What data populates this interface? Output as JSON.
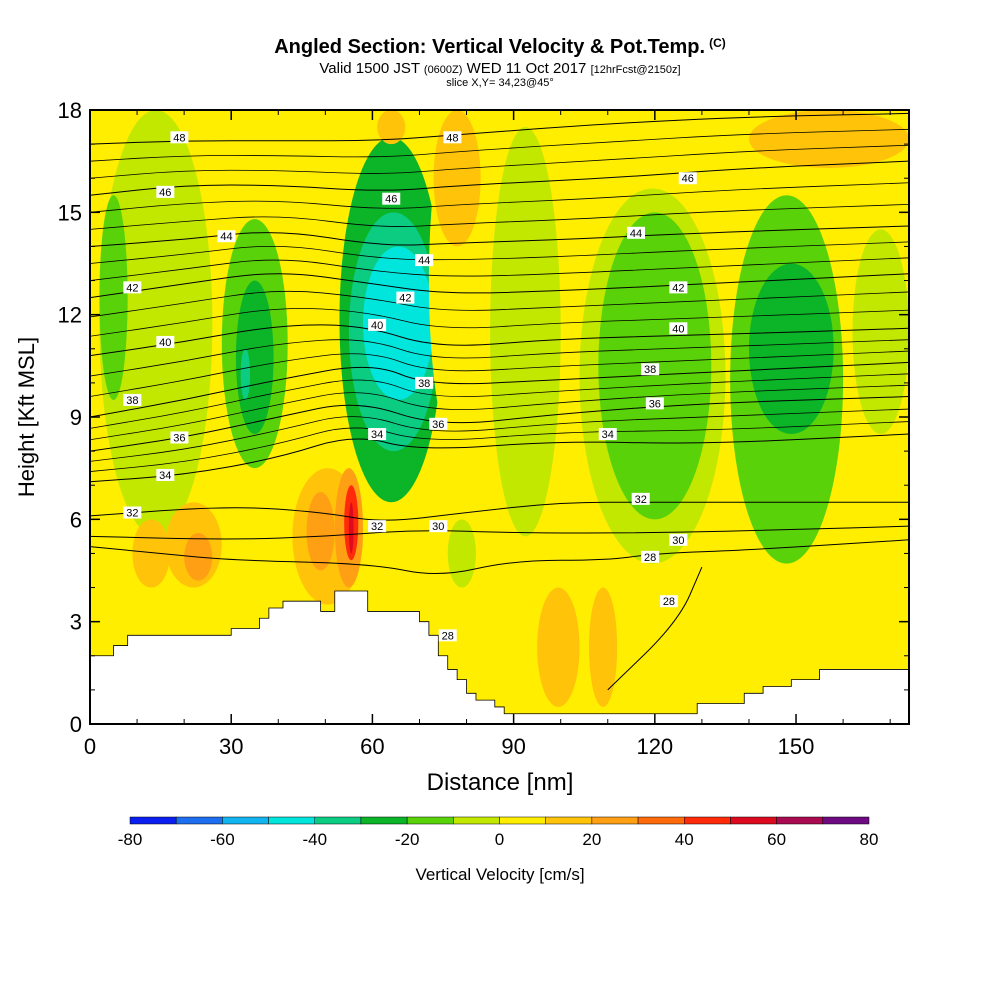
{
  "title": {
    "main": "Angled Section: Vertical Velocity & Pot.Temp.",
    "unit": "(C)",
    "valid_prefix": "Valid 1500 JST",
    "valid_utc": "(0600Z)",
    "valid_date": "WED 11 Oct 2017",
    "forecast": "[12hrFcst@2150z]",
    "slice": "slice X,Y= 34,23@45°"
  },
  "chart_data": {
    "type": "heatmap",
    "xlabel": "Distance [nm]",
    "ylabel": "Height [Kft MSL]",
    "xlim": [
      0,
      174
    ],
    "ylim": [
      0,
      18
    ],
    "xticks": [
      0,
      30,
      60,
      90,
      120,
      150
    ],
    "yticks": [
      0,
      3,
      6,
      9,
      12,
      15,
      18
    ],
    "colorbar": {
      "label": "Vertical Velocity [cm/s]",
      "ticks": [
        -80,
        -60,
        -40,
        -20,
        0,
        20,
        40,
        60,
        80
      ],
      "levels": [
        -80,
        -70,
        -60,
        -50,
        -40,
        -30,
        -20,
        -10,
        0,
        10,
        20,
        30,
        40,
        50,
        60,
        70,
        80
      ],
      "colors": [
        "#0a1ef0",
        "#1e6ef0",
        "#12b4f0",
        "#00e6dc",
        "#0ccc82",
        "#0cb428",
        "#5ad20a",
        "#c2e800",
        "#ffee00",
        "#ffc40a",
        "#ffa014",
        "#ff6a0a",
        "#ff2a0a",
        "#dc0a1e",
        "#aa0a50",
        "#6e0a82"
      ]
    },
    "vertical_velocity_cells": [
      {
        "x": [
          0,
          20
        ],
        "y": [
          1,
          5.3
        ],
        "value": 5
      },
      {
        "x": [
          2,
          26
        ],
        "y": [
          5.5,
          18
        ],
        "value": -5
      },
      {
        "x": [
          2,
          8
        ],
        "y": [
          9.5,
          15.5
        ],
        "value": -15
      },
      {
        "x": [
          9,
          17
        ],
        "y": [
          4,
          6
        ],
        "value": 15
      },
      {
        "x": [
          16,
          28
        ],
        "y": [
          4,
          6.5
        ],
        "value": 15
      },
      {
        "x": [
          20,
          26
        ],
        "y": [
          4.2,
          5.6
        ],
        "value": 25
      },
      {
        "x": [
          28,
          42
        ],
        "y": [
          7.5,
          14.8
        ],
        "value": -15
      },
      {
        "x": [
          31,
          39
        ],
        "y": [
          8.5,
          13
        ],
        "value": -25
      },
      {
        "x": [
          32,
          34
        ],
        "y": [
          9.5,
          11
        ],
        "value": -35
      },
      {
        "x": [
          28,
          45
        ],
        "y": [
          15,
          18
        ],
        "value": 5
      },
      {
        "x": [
          43,
          58
        ],
        "y": [
          3.5,
          7.5
        ],
        "value": 15
      },
      {
        "x": [
          46,
          52
        ],
        "y": [
          4.5,
          6.8
        ],
        "value": 25
      },
      {
        "x": [
          52,
          58
        ],
        "y": [
          4,
          7.5
        ],
        "value": 25
      },
      {
        "x": [
          54,
          57
        ],
        "y": [
          4.8,
          7
        ],
        "value": 45
      },
      {
        "x": [
          55,
          56
        ],
        "y": [
          5,
          6.5
        ],
        "value": 55
      },
      {
        "x": [
          53,
          75
        ],
        "y": [
          6.5,
          17.2
        ],
        "value": -25
      },
      {
        "x": [
          55,
          74
        ],
        "y": [
          8,
          15
        ],
        "value": -35
      },
      {
        "x": [
          58,
          73
        ],
        "y": [
          9.5,
          14
        ],
        "value": -45
      },
      {
        "x": [
          72,
          84
        ],
        "y": [
          8,
          18
        ],
        "value": 5
      },
      {
        "x": [
          73,
          83
        ],
        "y": [
          14,
          18
        ],
        "value": 15
      },
      {
        "x": [
          61,
          67
        ],
        "y": [
          17,
          18
        ],
        "value": 15
      },
      {
        "x": [
          76,
          82
        ],
        "y": [
          4,
          6
        ],
        "value": -5
      },
      {
        "x": [
          85,
          100
        ],
        "y": [
          5.5,
          17.5
        ],
        "value": -5
      },
      {
        "x": [
          104,
          135
        ],
        "y": [
          4.7,
          15.7
        ],
        "value": -5
      },
      {
        "x": [
          108,
          132
        ],
        "y": [
          6,
          15
        ],
        "value": -15
      },
      {
        "x": [
          136,
          160
        ],
        "y": [
          4.7,
          15.5
        ],
        "value": -15
      },
      {
        "x": [
          140,
          158
        ],
        "y": [
          8.5,
          13.5
        ],
        "value": -25
      },
      {
        "x": [
          162,
          174
        ],
        "y": [
          8.5,
          14.5
        ],
        "value": -5
      },
      {
        "x": [
          140,
          174
        ],
        "y": [
          16.3,
          18
        ],
        "value": 15
      },
      {
        "x": [
          95,
          104
        ],
        "y": [
          0.5,
          4
        ],
        "value": 15
      },
      {
        "x": [
          106,
          112
        ],
        "y": [
          0.5,
          4
        ],
        "value": 15
      },
      {
        "x": [
          120,
          128
        ],
        "y": [
          1,
          4
        ],
        "value": 5
      },
      {
        "x": [
          130,
          160
        ],
        "y": [
          1,
          4
        ],
        "value": 5
      }
    ],
    "terrain_height": [
      [
        0,
        2
      ],
      [
        5,
        2.3
      ],
      [
        8,
        2.6
      ],
      [
        28,
        2.6
      ],
      [
        30,
        2.8
      ],
      [
        36,
        3.1
      ],
      [
        38,
        3.4
      ],
      [
        41,
        3.6
      ],
      [
        48,
        3.6
      ],
      [
        49,
        3.3
      ],
      [
        52,
        3.3
      ],
      [
        52,
        3.9
      ],
      [
        57,
        3.9
      ],
      [
        59,
        3.3
      ],
      [
        69,
        3.3
      ],
      [
        70,
        3
      ],
      [
        72,
        2.6
      ],
      [
        74,
        2
      ],
      [
        76,
        1.6
      ],
      [
        78,
        1.3
      ],
      [
        80,
        0.9
      ],
      [
        82,
        0.7
      ],
      [
        86,
        0.5
      ],
      [
        88,
        0.3
      ],
      [
        91,
        0.3
      ],
      [
        91,
        0.3
      ],
      [
        129,
        0.3
      ],
      [
        129,
        0.6
      ],
      [
        135,
        0.6
      ],
      [
        139,
        0.9
      ],
      [
        143,
        1.1
      ],
      [
        149,
        1.3
      ],
      [
        152,
        1.3
      ],
      [
        155,
        1.6
      ],
      [
        174,
        1.6
      ]
    ],
    "potential_temperature": [
      {
        "label": "28",
        "points": [
          [
            0,
            5.2
          ],
          [
            15,
            5.0
          ],
          [
            30,
            4.8
          ],
          [
            60,
            4.7
          ],
          [
            74,
            4.3
          ],
          [
            90,
            4.8
          ],
          [
            110,
            4.8
          ],
          [
            120,
            5.0
          ],
          [
            140,
            5.1
          ],
          [
            174,
            5.4
          ]
        ],
        "label_at": [
          75,
          2.6
        ]
      },
      {
        "label": "28",
        "points": [
          [
            110,
            1.0
          ],
          [
            125,
            3.0
          ],
          [
            130,
            4.6
          ]
        ],
        "label_at": [
          123,
          3.7
        ]
      },
      {
        "label": "30",
        "points": [
          [
            0,
            5.5
          ],
          [
            30,
            5.4
          ],
          [
            50,
            5.5
          ],
          [
            70,
            5.7
          ],
          [
            90,
            5.6
          ],
          [
            120,
            5.6
          ],
          [
            150,
            5.7
          ],
          [
            174,
            5.8
          ]
        ],
        "label_at": [
          75,
          5.8
        ]
      },
      {
        "label": "32",
        "points": [
          [
            0,
            6.1
          ],
          [
            30,
            6.4
          ],
          [
            50,
            6.2
          ],
          [
            62,
            5.9
          ],
          [
            80,
            6.2
          ],
          [
            100,
            6.5
          ],
          [
            120,
            6.5
          ],
          [
            150,
            6.5
          ],
          [
            174,
            6.5
          ]
        ],
        "label_at": [
          58,
          6.0
        ]
      },
      {
        "label": "34",
        "points": [
          [
            0,
            7.1
          ],
          [
            20,
            7.3
          ],
          [
            40,
            7.8
          ],
          [
            56,
            8.5
          ],
          [
            70,
            8.0
          ],
          [
            100,
            8.3
          ],
          [
            130,
            8.2
          ],
          [
            174,
            8.5
          ]
        ],
        "label_at": [
          55,
          8.4
        ]
      },
      {
        "label": "36",
        "points": [
          [
            0,
            8.0
          ],
          [
            20,
            8.4
          ],
          [
            40,
            9.0
          ],
          [
            57,
            9.5
          ],
          [
            74,
            8.7
          ],
          [
            100,
            9.1
          ],
          [
            130,
            9.4
          ],
          [
            174,
            9.6
          ]
        ],
        "label_at": [
          74,
          8.8
        ]
      },
      {
        "label": "38",
        "points": [
          [
            0,
            9.0
          ],
          [
            20,
            9.5
          ],
          [
            40,
            10.1
          ],
          [
            60,
            10.6
          ],
          [
            72,
            9.9
          ],
          [
            100,
            10.1
          ],
          [
            130,
            10.3
          ],
          [
            174,
            10.6
          ]
        ],
        "label_at": [
          72,
          9.9
        ]
      },
      {
        "label": "40",
        "points": [
          [
            0,
            10.8
          ],
          [
            20,
            11.2
          ],
          [
            40,
            11.7
          ],
          [
            58,
            11.7
          ],
          [
            74,
            11.0
          ],
          [
            100,
            11.3
          ],
          [
            130,
            11.4
          ],
          [
            174,
            11.6
          ]
        ],
        "label_at": [
          58,
          11.7
        ]
      },
      {
        "label": "42",
        "points": [
          [
            0,
            12.5
          ],
          [
            20,
            12.9
          ],
          [
            40,
            13.3
          ],
          [
            60,
            12.9
          ],
          [
            76,
            12.6
          ],
          [
            100,
            12.7
          ],
          [
            130,
            12.9
          ],
          [
            174,
            13.2
          ]
        ],
        "label_at": [
          63,
          12.5
        ]
      },
      {
        "label": "44",
        "points": [
          [
            0,
            14.0
          ],
          [
            20,
            14.2
          ],
          [
            40,
            14.5
          ],
          [
            62,
            14.0
          ],
          [
            78,
            14.1
          ],
          [
            100,
            14.2
          ],
          [
            130,
            14.4
          ],
          [
            174,
            14.6
          ]
        ],
        "label_at": [
          68,
          13.6
        ]
      },
      {
        "label": "46",
        "points": [
          [
            0,
            15.5
          ],
          [
            20,
            15.8
          ],
          [
            40,
            15.8
          ],
          [
            62,
            15.6
          ],
          [
            80,
            15.8
          ],
          [
            110,
            16.0
          ],
          [
            140,
            16.3
          ],
          [
            174,
            16.5
          ]
        ],
        "label_at": [
          58,
          15.3
        ]
      },
      {
        "label": "48",
        "points": [
          [
            0,
            17.0
          ],
          [
            20,
            17.1
          ],
          [
            40,
            17.1
          ],
          [
            62,
            17.1
          ],
          [
            80,
            17.3
          ],
          [
            110,
            17.6
          ],
          [
            140,
            17.8
          ],
          [
            174,
            17.9
          ]
        ],
        "label_at": [
          77,
          17.2
        ]
      }
    ],
    "contour_labels": [
      {
        "text": "48",
        "x": 19,
        "y": 17.2
      },
      {
        "text": "46",
        "x": 16,
        "y": 15.6
      },
      {
        "text": "44",
        "x": 29,
        "y": 14.3
      },
      {
        "text": "42",
        "x": 9,
        "y": 12.8
      },
      {
        "text": "40",
        "x": 16,
        "y": 11.2
      },
      {
        "text": "38",
        "x": 9,
        "y": 9.5
      },
      {
        "text": "36",
        "x": 19,
        "y": 8.4
      },
      {
        "text": "34",
        "x": 16,
        "y": 7.3
      },
      {
        "text": "32",
        "x": 9,
        "y": 6.2
      },
      {
        "text": "48",
        "x": 77,
        "y": 17.2
      },
      {
        "text": "46",
        "x": 64,
        "y": 15.4
      },
      {
        "text": "44",
        "x": 71,
        "y": 13.6
      },
      {
        "text": "42",
        "x": 67,
        "y": 12.5
      },
      {
        "text": "40",
        "x": 61,
        "y": 11.7
      },
      {
        "text": "38",
        "x": 71,
        "y": 10.0
      },
      {
        "text": "36",
        "x": 74,
        "y": 8.8
      },
      {
        "text": "34",
        "x": 61,
        "y": 8.5
      },
      {
        "text": "32",
        "x": 61,
        "y": 5.8
      },
      {
        "text": "30",
        "x": 74,
        "y": 5.8
      },
      {
        "text": "28",
        "x": 76,
        "y": 2.6
      },
      {
        "text": "46",
        "x": 127,
        "y": 16.0
      },
      {
        "text": "44",
        "x": 116,
        "y": 14.4
      },
      {
        "text": "42",
        "x": 125,
        "y": 12.8
      },
      {
        "text": "40",
        "x": 125,
        "y": 11.6
      },
      {
        "text": "38",
        "x": 119,
        "y": 10.4
      },
      {
        "text": "36",
        "x": 120,
        "y": 9.4
      },
      {
        "text": "34",
        "x": 110,
        "y": 8.5
      },
      {
        "text": "32",
        "x": 117,
        "y": 6.6
      },
      {
        "text": "30",
        "x": 125,
        "y": 5.4
      },
      {
        "text": "28",
        "x": 119,
        "y": 4.9
      },
      {
        "text": "28",
        "x": 123,
        "y": 3.6
      }
    ]
  }
}
